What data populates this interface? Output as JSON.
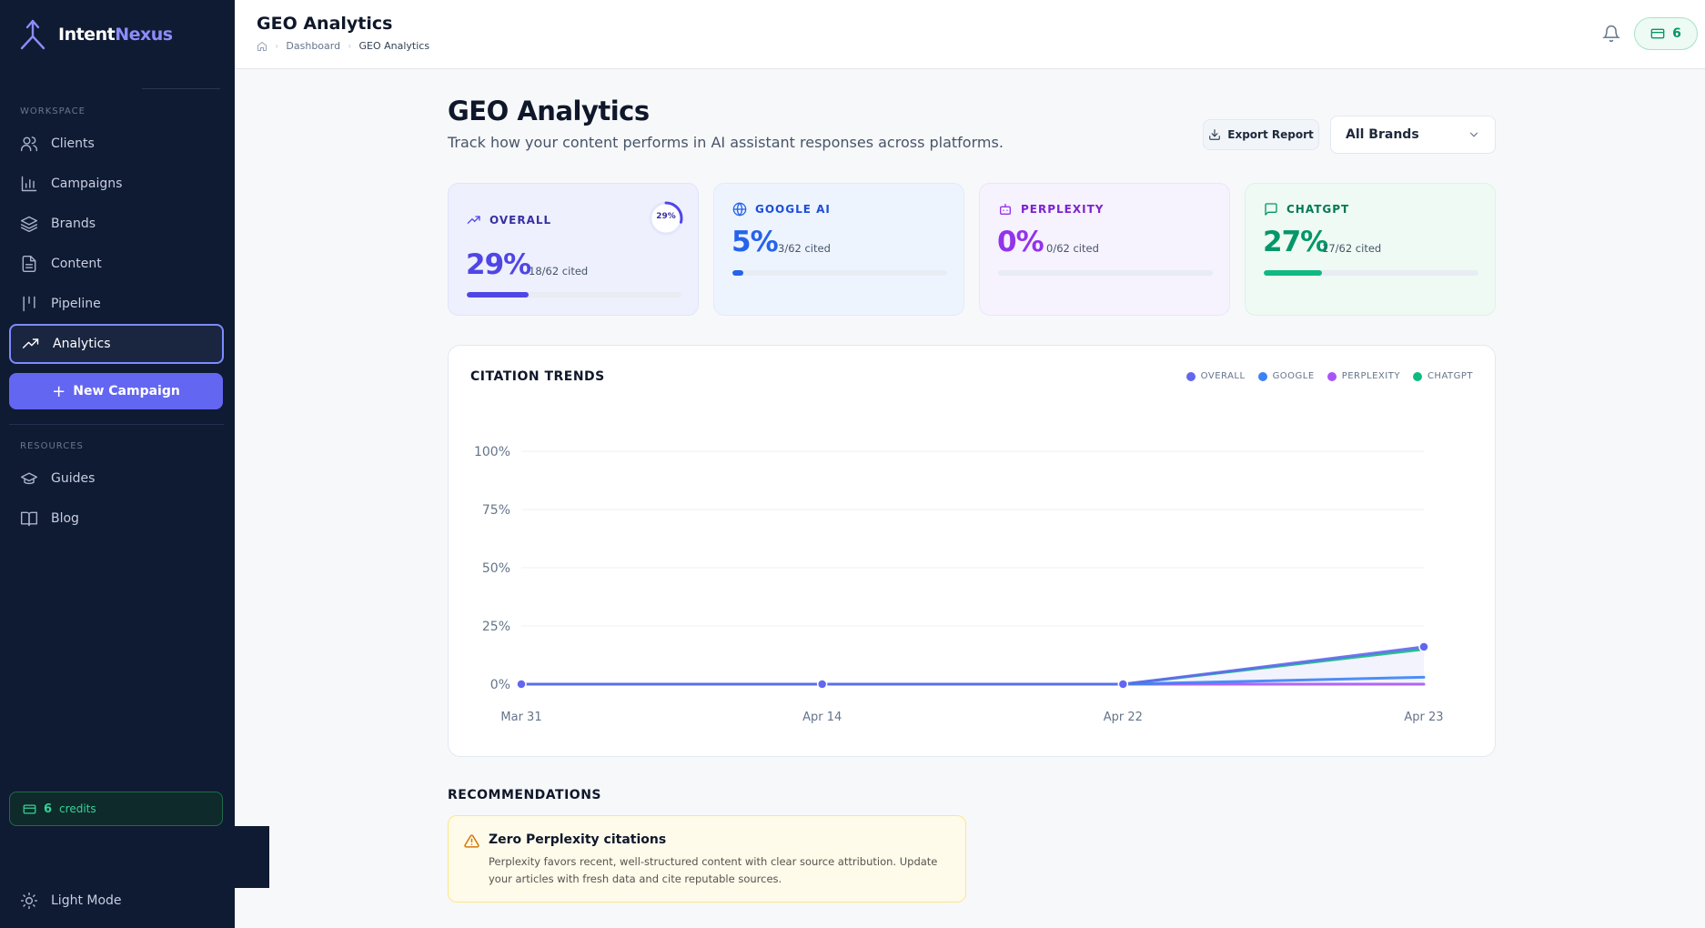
{
  "app": {
    "logo_part1": "Intent",
    "logo_part2": "Nexus"
  },
  "sidebar": {
    "workspace_label": "WORKSPACE",
    "workspace_items": [
      {
        "label": "Clients",
        "icon": "users-icon"
      },
      {
        "label": "Campaigns",
        "icon": "bar-chart-icon"
      },
      {
        "label": "Brands",
        "icon": "layers-icon"
      },
      {
        "label": "Content",
        "icon": "document-icon"
      },
      {
        "label": "Pipeline",
        "icon": "kanban-icon"
      },
      {
        "label": "Analytics",
        "icon": "trending-up-icon",
        "active": true
      }
    ],
    "new_campaign_label": "New Campaign",
    "resources_label": "RESOURCES",
    "resources_items": [
      {
        "label": "Guides",
        "icon": "graduation-cap-icon"
      },
      {
        "label": "Blog",
        "icon": "book-icon"
      }
    ],
    "credits_count": "6",
    "credits_label": "credits",
    "theme_toggle_label": "Light Mode"
  },
  "header": {
    "title": "GEO Analytics",
    "breadcrumb": [
      "Dashboard",
      "GEO Analytics"
    ],
    "credits_count": "6"
  },
  "main": {
    "title": "GEO Analytics",
    "subtitle": "Track how your content performs in AI assistant responses across platforms.",
    "export_label": "Export Report",
    "brand_select_value": "All Brands"
  },
  "stats": [
    {
      "label": "OVERALL",
      "value": "29%",
      "cited": "18/62 cited",
      "ring_label": "29%",
      "fraction": 0.29,
      "color": "#4f46e5"
    },
    {
      "label": "GOOGLE AI",
      "value": "5%",
      "cited": "3/62 cited",
      "fraction": 0.05,
      "color": "#2563eb"
    },
    {
      "label": "PERPLEXITY",
      "value": "0%",
      "cited": "0/62 cited",
      "fraction": 0.0,
      "color": "#9333ea"
    },
    {
      "label": "CHATGPT",
      "value": "27%",
      "cited": "17/62 cited",
      "fraction": 0.27,
      "color": "#059669"
    }
  ],
  "chart_title": "CITATION TRENDS",
  "chart_data": {
    "type": "line",
    "title": "CITATION TRENDS",
    "categories": [
      "Mar 31",
      "Apr 14",
      "Apr 22",
      "Apr 23"
    ],
    "y_ticks": [
      "100%",
      "75%",
      "50%",
      "25%",
      "0%"
    ],
    "ylim": [
      0,
      100
    ],
    "grid": true,
    "legend_position": "top-right",
    "series": [
      {
        "name": "OVERALL",
        "color": "#6366f1",
        "values": [
          0,
          0,
          0,
          16
        ]
      },
      {
        "name": "GOOGLE",
        "color": "#3b82f6",
        "values": [
          0,
          0,
          0,
          3
        ]
      },
      {
        "name": "PERPLEXITY",
        "color": "#a855f7",
        "values": [
          0,
          0,
          0,
          0
        ]
      },
      {
        "name": "CHATGPT",
        "color": "#10b981",
        "values": [
          0,
          0,
          0,
          15
        ]
      }
    ]
  },
  "recommendations": {
    "label": "RECOMMENDATIONS",
    "items": [
      {
        "title": "Zero Perplexity citations",
        "body": "Perplexity favors recent, well-structured content with clear source attribution. Update your articles with fresh data and cite reputable sources."
      }
    ]
  }
}
